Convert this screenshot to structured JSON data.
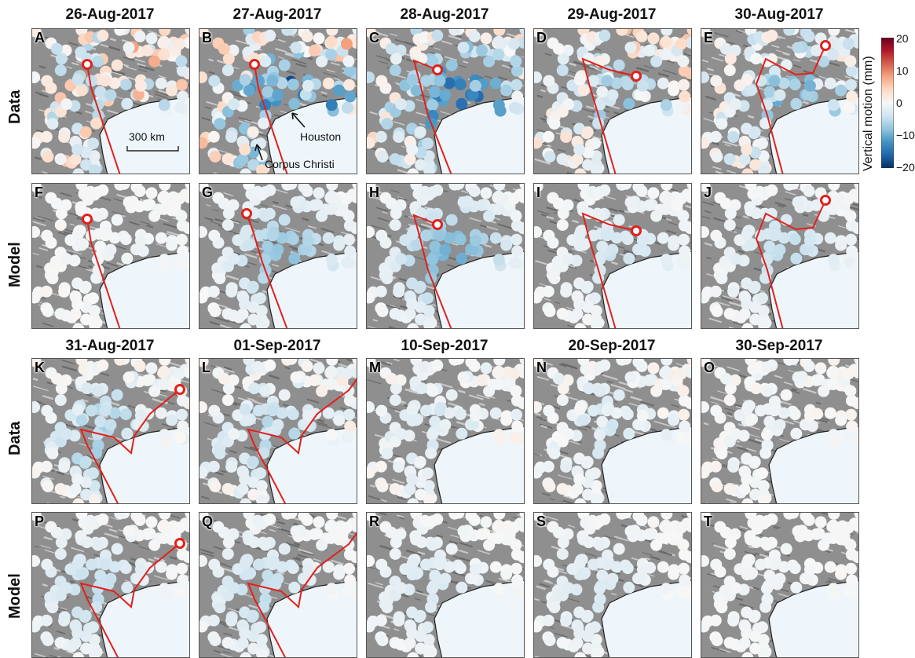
{
  "titles_top": [
    "26-Aug-2017",
    "27-Aug-2017",
    "28-Aug-2017",
    "29-Aug-2017",
    "30-Aug-2017"
  ],
  "titles_bottom": [
    "31-Aug-2017",
    "01-Sep-2017",
    "10-Sep-2017",
    "20-Sep-2017",
    "30-Sep-2017"
  ],
  "row_labels": [
    "Data",
    "Model",
    "Data",
    "Model"
  ],
  "panel_letters": [
    "A",
    "B",
    "C",
    "D",
    "E",
    "F",
    "G",
    "H",
    "I",
    "J",
    "K",
    "L",
    "M",
    "N",
    "O",
    "P",
    "Q",
    "R",
    "S",
    "T"
  ],
  "annotations": {
    "scale_bar": "300 km",
    "houston": "Houston",
    "corpus_christi": "Corpus Christi"
  },
  "colorbar": {
    "title": "Vertical motion (mm)",
    "ticks": [
      "20",
      "10",
      "0",
      "−10",
      "−20"
    ],
    "colors": [
      "#67001f",
      "#b2182b",
      "#d6604d",
      "#f4a582",
      "#fddbc7",
      "#f7f7f7",
      "#d1e5f0",
      "#92c5de",
      "#4393c3",
      "#2166ac",
      "#053061"
    ]
  },
  "storm_center_per_panel": [
    "A",
    "A",
    "C",
    "D",
    "E",
    "A",
    "B",
    "C",
    "D",
    "E",
    "K",
    "L",
    "none",
    "none",
    "none",
    "K",
    "L",
    "none",
    "none",
    "none"
  ]
}
